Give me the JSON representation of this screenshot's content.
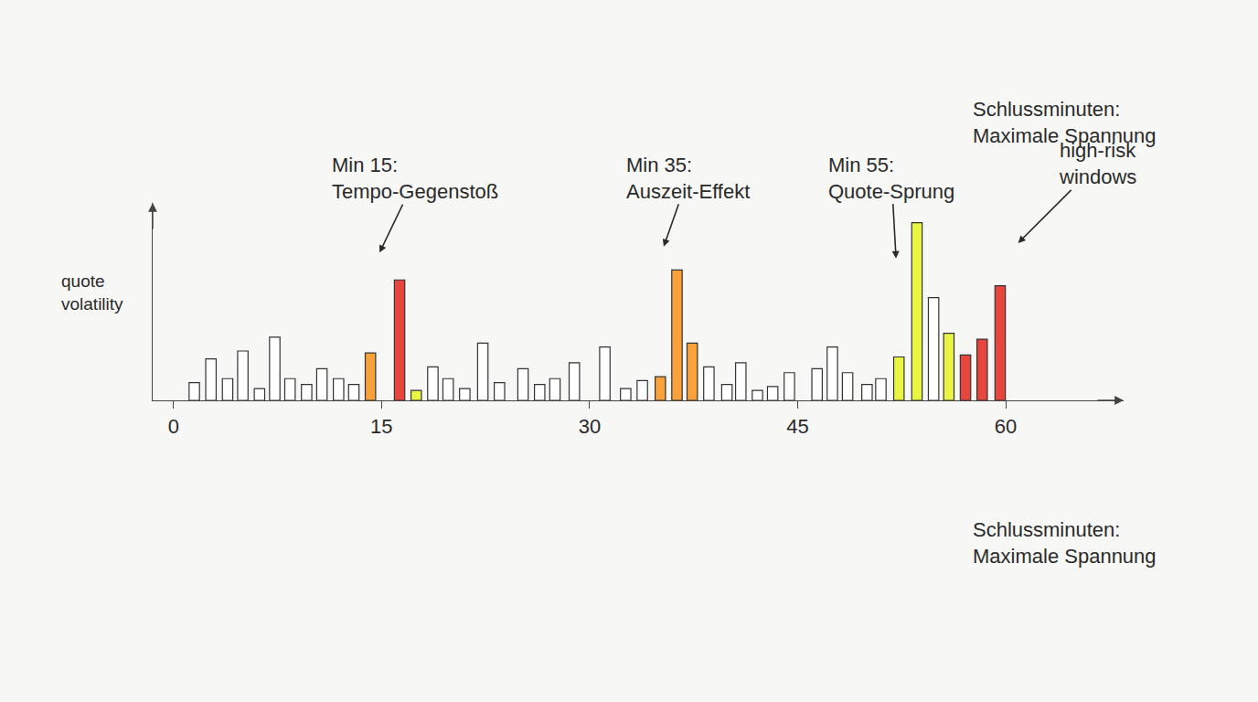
{
  "chart_data": {
    "type": "bar",
    "y_label": "quote\nvolatility",
    "x": [
      1.5,
      2.7,
      3.9,
      5.0,
      6.2,
      7.3,
      8.4,
      9.6,
      10.7,
      11.9,
      13.0,
      14.2,
      16.3,
      17.5,
      18.7,
      19.8,
      21.0,
      22.3,
      23.5,
      25.2,
      26.4,
      27.5,
      28.9,
      31.1,
      32.6,
      33.8,
      35.1,
      36.3,
      37.4,
      38.6,
      39.9,
      40.9,
      42.1,
      43.2,
      44.4,
      46.4,
      47.5,
      48.6,
      50.0,
      51.0,
      52.3,
      53.6,
      54.8,
      55.9,
      57.1,
      58.3,
      59.6
    ],
    "values": [
      0.9,
      2.1,
      1.1,
      2.5,
      0.6,
      3.2,
      1.1,
      0.8,
      1.6,
      1.1,
      0.8,
      2.4,
      6.1,
      0.5,
      1.7,
      1.1,
      0.6,
      2.9,
      0.9,
      1.6,
      0.8,
      1.1,
      1.9,
      2.7,
      0.6,
      1.0,
      1.2,
      6.6,
      2.9,
      1.7,
      0.8,
      1.9,
      0.5,
      0.7,
      1.4,
      1.6,
      2.7,
      1.4,
      0.8,
      1.1,
      2.2,
      9.0,
      5.2,
      3.4,
      2.3,
      3.1,
      5.8
    ],
    "colors": [
      "#ffffff",
      "#ffffff",
      "#ffffff",
      "#ffffff",
      "#ffffff",
      "#ffffff",
      "#ffffff",
      "#ffffff",
      "#ffffff",
      "#ffffff",
      "#ffffff",
      "#f9a13a",
      "#e8453c",
      "#e9f542",
      "#ffffff",
      "#ffffff",
      "#ffffff",
      "#ffffff",
      "#ffffff",
      "#ffffff",
      "#ffffff",
      "#ffffff",
      "#ffffff",
      "#ffffff",
      "#ffffff",
      "#ffffff",
      "#f9a13a",
      "#f9a13a",
      "#f9a13a",
      "#ffffff",
      "#ffffff",
      "#ffffff",
      "#ffffff",
      "#ffffff",
      "#ffffff",
      "#ffffff",
      "#ffffff",
      "#ffffff",
      "#ffffff",
      "#ffffff",
      "#e9f542",
      "#e9f542",
      "#ffffff",
      "#e9f542",
      "#e8453c",
      "#e8453c",
      "#e8453c"
    ],
    "xlim": [
      -1.5,
      68.5
    ],
    "xticks": [
      0,
      15,
      30,
      45,
      60
    ],
    "ylim": [
      0,
      10
    ],
    "grid": false,
    "tick_labels": "x",
    "annotations": [
      {
        "text": "Min 15:\nTempo-Gegenstoß",
        "x": 14.8,
        "y": 7.4
      },
      {
        "text": "Min 35:\nAuszeit-Effekt",
        "x": 35.3,
        "y": 7.7
      },
      {
        "text": "Min 55:\nQuote-Sprung",
        "x": 52.1,
        "y": 7.1
      },
      {
        "text": "high-risk\nwindows",
        "x": 60.8,
        "y": 7.9
      },
      {
        "text": "Schlussminuten:\nMaximale Spannung"
      },
      {
        "text": "Schlussminuten:\nMaximale Spannung"
      }
    ]
  }
}
